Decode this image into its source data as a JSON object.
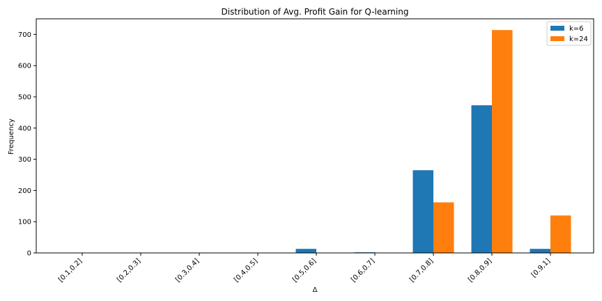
{
  "chart_data": {
    "type": "bar",
    "title": "Distribution of Avg. Profit Gain for Q-learning",
    "xlabel": "Δ",
    "ylabel": "Frequency",
    "categories": [
      "[0.1,0.2]",
      "[0.2,0.3]",
      "[0.3,0.4]",
      "[0.4,0.5]",
      "[0.5,0.6]",
      "[0.6,0.7]",
      "[0.7,0.8]",
      "[0.8,0.9]",
      "[0.9,1]"
    ],
    "series": [
      {
        "name": "k=6",
        "color": "#1f77b4",
        "values": [
          0,
          0,
          0,
          0,
          13,
          2,
          265,
          473,
          13
        ]
      },
      {
        "name": "k=24",
        "color": "#ff7f0e",
        "values": [
          0,
          0,
          0,
          0,
          0,
          0,
          162,
          714,
          120
        ]
      }
    ],
    "ylim": [
      0,
      750
    ],
    "yticks": [
      0,
      100,
      200,
      300,
      400,
      500,
      600,
      700
    ],
    "grid": false,
    "legend_position": "top-right"
  }
}
